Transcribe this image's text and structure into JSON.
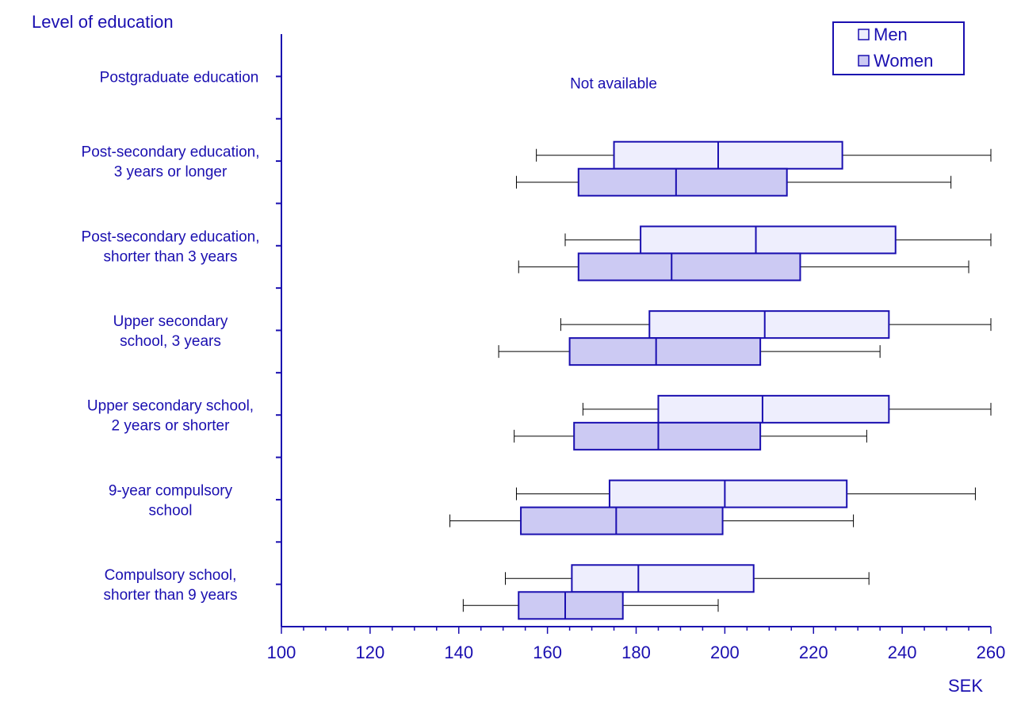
{
  "chart_data": {
    "type": "box",
    "title": "Level of education",
    "xlabel": "SEK",
    "xlim": [
      100,
      260
    ],
    "xticks": [
      "100",
      "120",
      "140",
      "160",
      "180",
      "200",
      "220",
      "240",
      "260"
    ],
    "legend": {
      "position": "top-right",
      "entries": [
        "Men",
        "Women"
      ]
    },
    "colors": {
      "axis": "#1a0fb0",
      "men_fill": "#eeeefd",
      "women_fill": "#cccaf3",
      "whisker": "#000000"
    },
    "categories": [
      {
        "label_lines": [
          "Postgraduate education"
        ],
        "note": "Not available",
        "boxes": []
      },
      {
        "label_lines": [
          "Post-secondary education,",
          "3 years or longer"
        ],
        "boxes": [
          {
            "series": "Men",
            "min": 157.5,
            "q1": 175,
            "median": 198.5,
            "q3": 226.5,
            "max": 260
          },
          {
            "series": "Women",
            "min": 153,
            "q1": 167,
            "median": 189,
            "q3": 214,
            "max": 251
          }
        ]
      },
      {
        "label_lines": [
          "Post-secondary education,",
          "shorter than 3 years"
        ],
        "boxes": [
          {
            "series": "Men",
            "min": 164,
            "q1": 181,
            "median": 207,
            "q3": 238.5,
            "max": 260
          },
          {
            "series": "Women",
            "min": 153.5,
            "q1": 167,
            "median": 188,
            "q3": 217,
            "max": 255
          }
        ]
      },
      {
        "label_lines": [
          "Upper secondary",
          "school, 3 years"
        ],
        "boxes": [
          {
            "series": "Men",
            "min": 163,
            "q1": 183,
            "median": 209,
            "q3": 237,
            "max": 260
          },
          {
            "series": "Women",
            "min": 149,
            "q1": 165,
            "median": 184.5,
            "q3": 208,
            "max": 235
          }
        ]
      },
      {
        "label_lines": [
          "Upper secondary school,",
          "2 years or shorter"
        ],
        "boxes": [
          {
            "series": "Men",
            "min": 168,
            "q1": 185,
            "median": 208.5,
            "q3": 237,
            "max": 260
          },
          {
            "series": "Women",
            "min": 152.5,
            "q1": 166,
            "median": 185,
            "q3": 208,
            "max": 232
          }
        ]
      },
      {
        "label_lines": [
          "9-year compulsory",
          "school"
        ],
        "boxes": [
          {
            "series": "Men",
            "min": 153,
            "q1": 174,
            "median": 200,
            "q3": 227.5,
            "max": 256.5
          },
          {
            "series": "Women",
            "min": 138,
            "q1": 154,
            "median": 175.5,
            "q3": 199.5,
            "max": 229
          }
        ]
      },
      {
        "label_lines": [
          "Compulsory school,",
          "shorter than 9 years"
        ],
        "boxes": [
          {
            "series": "Men",
            "min": 150.5,
            "q1": 165.5,
            "median": 180.5,
            "q3": 206.5,
            "max": 232.5
          },
          {
            "series": "Women",
            "min": 141,
            "q1": 153.5,
            "median": 164,
            "q3": 177,
            "max": 198.5
          }
        ]
      }
    ]
  }
}
